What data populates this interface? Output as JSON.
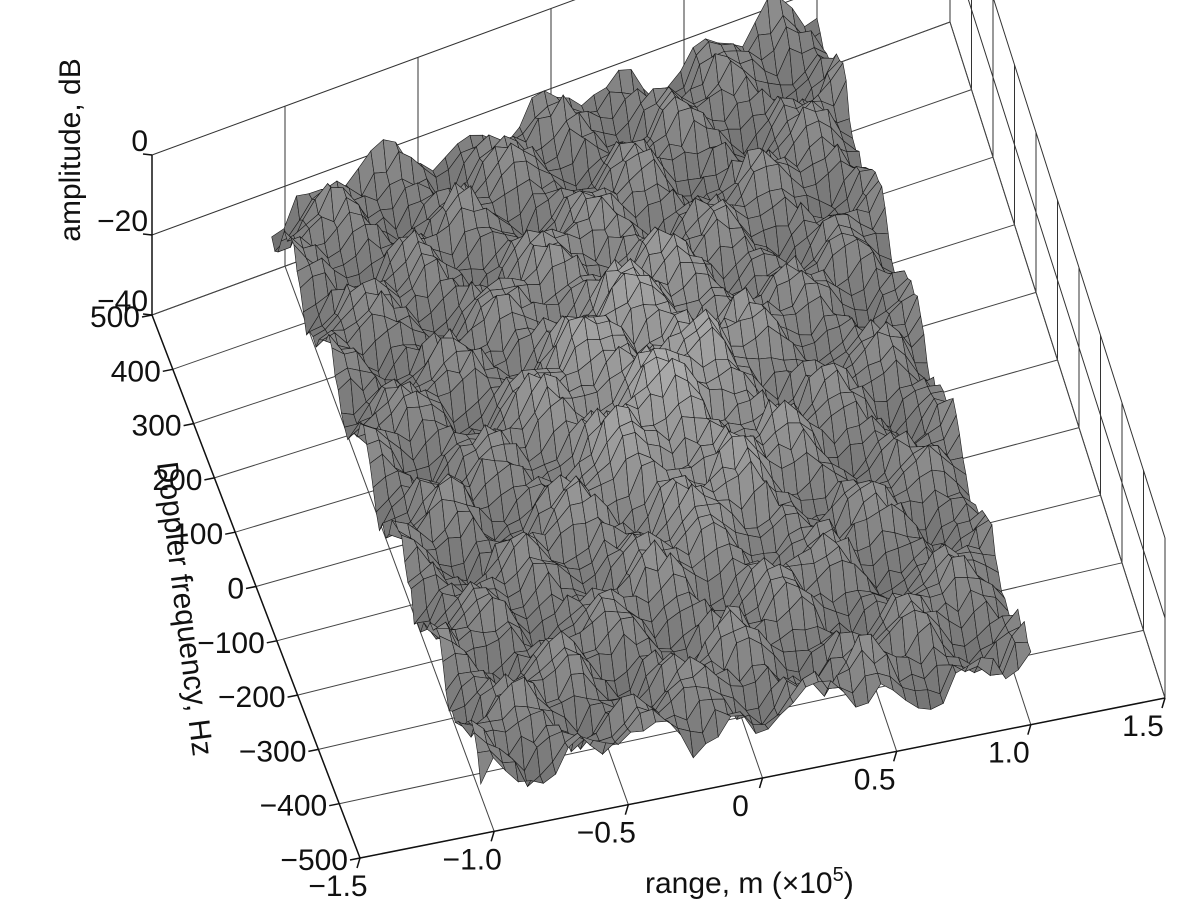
{
  "chart_data": {
    "type": "surface",
    "title": "",
    "x_axis": {
      "label": "range, m (×10",
      "label_exponent": "5",
      "label_close": ")",
      "ticks": [
        "−1.5",
        "−1.0",
        "−0.5",
        "0",
        "0.5",
        "1.0",
        "1.5"
      ],
      "tick_values": [
        -1.5,
        -1.0,
        -0.5,
        0,
        0.5,
        1.0,
        1.5
      ],
      "range": [
        -1.5,
        1.5
      ]
    },
    "y_axis": {
      "label": "Doppler frequency, Hz",
      "ticks": [
        "−500",
        "−400",
        "−300",
        "−200",
        "−100",
        "0",
        "100",
        "200",
        "300",
        "400",
        "500"
      ],
      "tick_values": [
        -500,
        -400,
        -300,
        -200,
        -100,
        0,
        100,
        200,
        300,
        400,
        500
      ],
      "range": [
        -500,
        500
      ]
    },
    "z_axis": {
      "label": "amplitude, dB",
      "ticks": [
        "−40",
        "−20",
        "0"
      ],
      "tick_values": [
        -40,
        -20,
        0
      ],
      "range": [
        -40,
        0
      ]
    },
    "surface": {
      "x_extent": [
        -1.05,
        1.0
      ],
      "y_extent": [
        -500,
        500
      ],
      "peak_value": 0,
      "floor_value": -25,
      "colormap": "grayscale",
      "mesh_color": "#1a1a1a",
      "fill_color": "#8c8c8c"
    },
    "grid": true,
    "box": true
  }
}
